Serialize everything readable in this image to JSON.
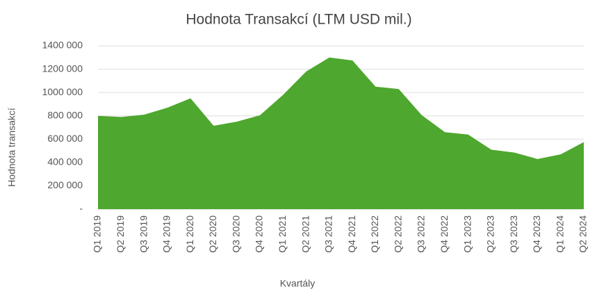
{
  "chart_data": {
    "type": "area",
    "title": "Hodnota Transakcí (LTM USD mil.)",
    "xlabel": "Kvartály",
    "ylabel": "Hodnota transakcí",
    "categories": [
      "Q1 2019",
      "Q2 2019",
      "Q3 2019",
      "Q4 2019",
      "Q1 2020",
      "Q2 2020",
      "Q3 2020",
      "Q4 2020",
      "Q1 2021",
      "Q2 2021",
      "Q3 2021",
      "Q4 2021",
      "Q1 2022",
      "Q2 2022",
      "Q3 2022",
      "Q4 2022",
      "Q1 2023",
      "Q2 2023",
      "Q3 2023",
      "Q4 2023",
      "Q1 2024",
      "Q2 2024"
    ],
    "values": [
      800000,
      790000,
      810000,
      870000,
      950000,
      715000,
      750000,
      805000,
      980000,
      1180000,
      1300000,
      1275000,
      1050000,
      1030000,
      805000,
      660000,
      640000,
      510000,
      485000,
      430000,
      470000,
      575000
    ],
    "color": "#4ea72e",
    "ylim": [
      0,
      1400000
    ],
    "yticks": [
      {
        "value": 0,
        "label": "-"
      },
      {
        "value": 200000,
        "label": "200 000"
      },
      {
        "value": 400000,
        "label": "400 000"
      },
      {
        "value": 600000,
        "label": "600 000"
      },
      {
        "value": 800000,
        "label": "800 000"
      },
      {
        "value": 1000000,
        "label": "1000 000"
      },
      {
        "value": 1200000,
        "label": "1200 000"
      },
      {
        "value": 1400000,
        "label": "1400 000"
      }
    ],
    "grid": true
  }
}
